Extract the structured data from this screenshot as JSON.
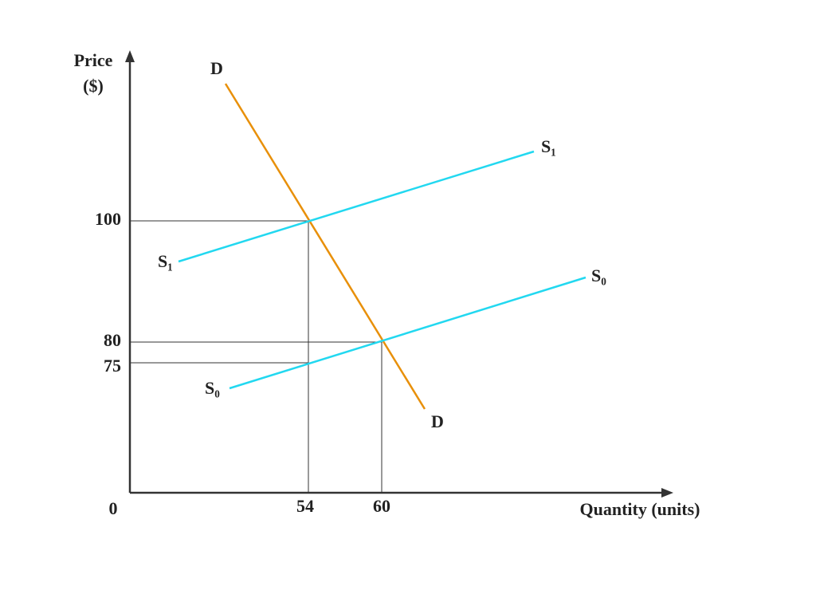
{
  "axes": {
    "y_label": [
      "Price",
      "($)"
    ],
    "x_label": "Quantity (units)",
    "origin": "0"
  },
  "y_ticks": [
    "100",
    "80",
    "75"
  ],
  "x_ticks": [
    "54",
    "60"
  ],
  "curves": [
    {
      "label": "D"
    },
    {
      "label": "S₁"
    },
    {
      "label": "S₀"
    }
  ]
}
